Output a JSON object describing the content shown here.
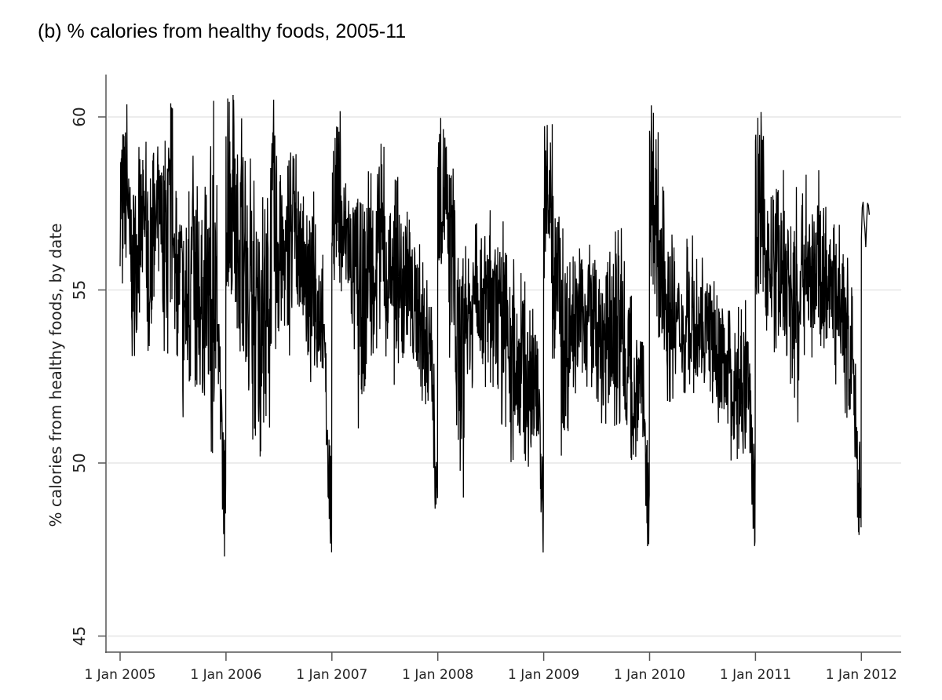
{
  "chart_data": {
    "type": "line",
    "title": "(b) % calories from healthy foods, 2005-11",
    "xlabel": "",
    "ylabel": "% calories from healthy foods, by date",
    "ylim": [
      44.55,
      61.2
    ],
    "xlim": [
      "2004-12-15",
      "2012-03-10"
    ],
    "yticks": [
      45,
      50,
      55,
      60
    ],
    "xticks": [
      "1 Jan 2005",
      "1 Jan 2006",
      "1 Jan 2007",
      "1 Jan 2008",
      "1 Jan 2009",
      "1 Jan 2010",
      "1 Jan 2011",
      "1 Jan 2012"
    ],
    "grid": "horizontal",
    "line_color": "#000000",
    "note_series": "daily values, summarized as monthly [low, high] range",
    "monthly_range": {
      "2005": [
        [
          55,
          60.5
        ],
        [
          53,
          59
        ],
        [
          54,
          59.5
        ],
        [
          53,
          59
        ],
        [
          54,
          59.5
        ],
        [
          53,
          60.5
        ],
        [
          53,
          58
        ],
        [
          51,
          58
        ],
        [
          52,
          59
        ],
        [
          51,
          58
        ],
        [
          50,
          60.5
        ],
        [
          47.3,
          54
        ]
      ],
      "2006": [
        [
          54,
          60.7
        ],
        [
          53,
          60
        ],
        [
          52,
          59
        ],
        [
          49,
          58.5
        ],
        [
          51,
          59
        ],
        [
          52,
          60.7
        ],
        [
          53,
          58.5
        ],
        [
          53,
          60.4
        ],
        [
          54,
          58
        ],
        [
          52,
          58
        ],
        [
          52,
          57
        ],
        [
          47.1,
          54
        ]
      ],
      "2007": [
        [
          55,
          60.5
        ],
        [
          54,
          59
        ],
        [
          53,
          58.5
        ],
        [
          51,
          58.5
        ],
        [
          53,
          58.5
        ],
        [
          53,
          59.5
        ],
        [
          53,
          57.5
        ],
        [
          52,
          58.3
        ],
        [
          53,
          58
        ],
        [
          52,
          57
        ],
        [
          51,
          56
        ],
        [
          47.9,
          54.5
        ]
      ],
      "2008": [
        [
          55,
          60.7
        ],
        [
          53,
          59.5
        ],
        [
          48.7,
          57
        ],
        [
          52,
          56.5
        ],
        [
          53,
          57
        ],
        [
          52,
          57.5
        ],
        [
          52,
          56.5
        ],
        [
          51,
          57
        ],
        [
          50,
          56
        ],
        [
          50,
          55.5
        ],
        [
          49.8,
          54.5
        ],
        [
          47.1,
          53.7
        ]
      ],
      "2009": [
        [
          55,
          59.9
        ],
        [
          53,
          58
        ],
        [
          50,
          57
        ],
        [
          52,
          56
        ],
        [
          52,
          56.5
        ],
        [
          52,
          56.5
        ],
        [
          51,
          56
        ],
        [
          51,
          56.5
        ],
        [
          51,
          57
        ],
        [
          50,
          56
        ],
        [
          50,
          55
        ],
        [
          47.1,
          53.5
        ]
      ],
      "2010": [
        [
          54,
          60.4
        ],
        [
          52,
          58
        ],
        [
          51,
          57
        ],
        [
          52,
          56
        ],
        [
          52,
          57.5
        ],
        [
          52,
          56
        ],
        [
          52,
          56
        ],
        [
          51,
          55.5
        ],
        [
          51,
          55
        ],
        [
          50,
          54.5
        ],
        [
          49,
          54.8
        ],
        [
          47.6,
          53.5
        ]
      ],
      "2011": [
        [
          54,
          60.3
        ],
        [
          53,
          58.5
        ],
        [
          53,
          58
        ],
        [
          52,
          58.5
        ],
        [
          51,
          58
        ],
        [
          53,
          58.5
        ],
        [
          53,
          57.8
        ],
        [
          53,
          58.5
        ],
        [
          53,
          57
        ],
        [
          52,
          57
        ],
        [
          50.5,
          56
        ],
        [
          47.3,
          53
        ]
      ],
      "2012": [
        [
          56,
          57.9
        ]
      ]
    }
  }
}
